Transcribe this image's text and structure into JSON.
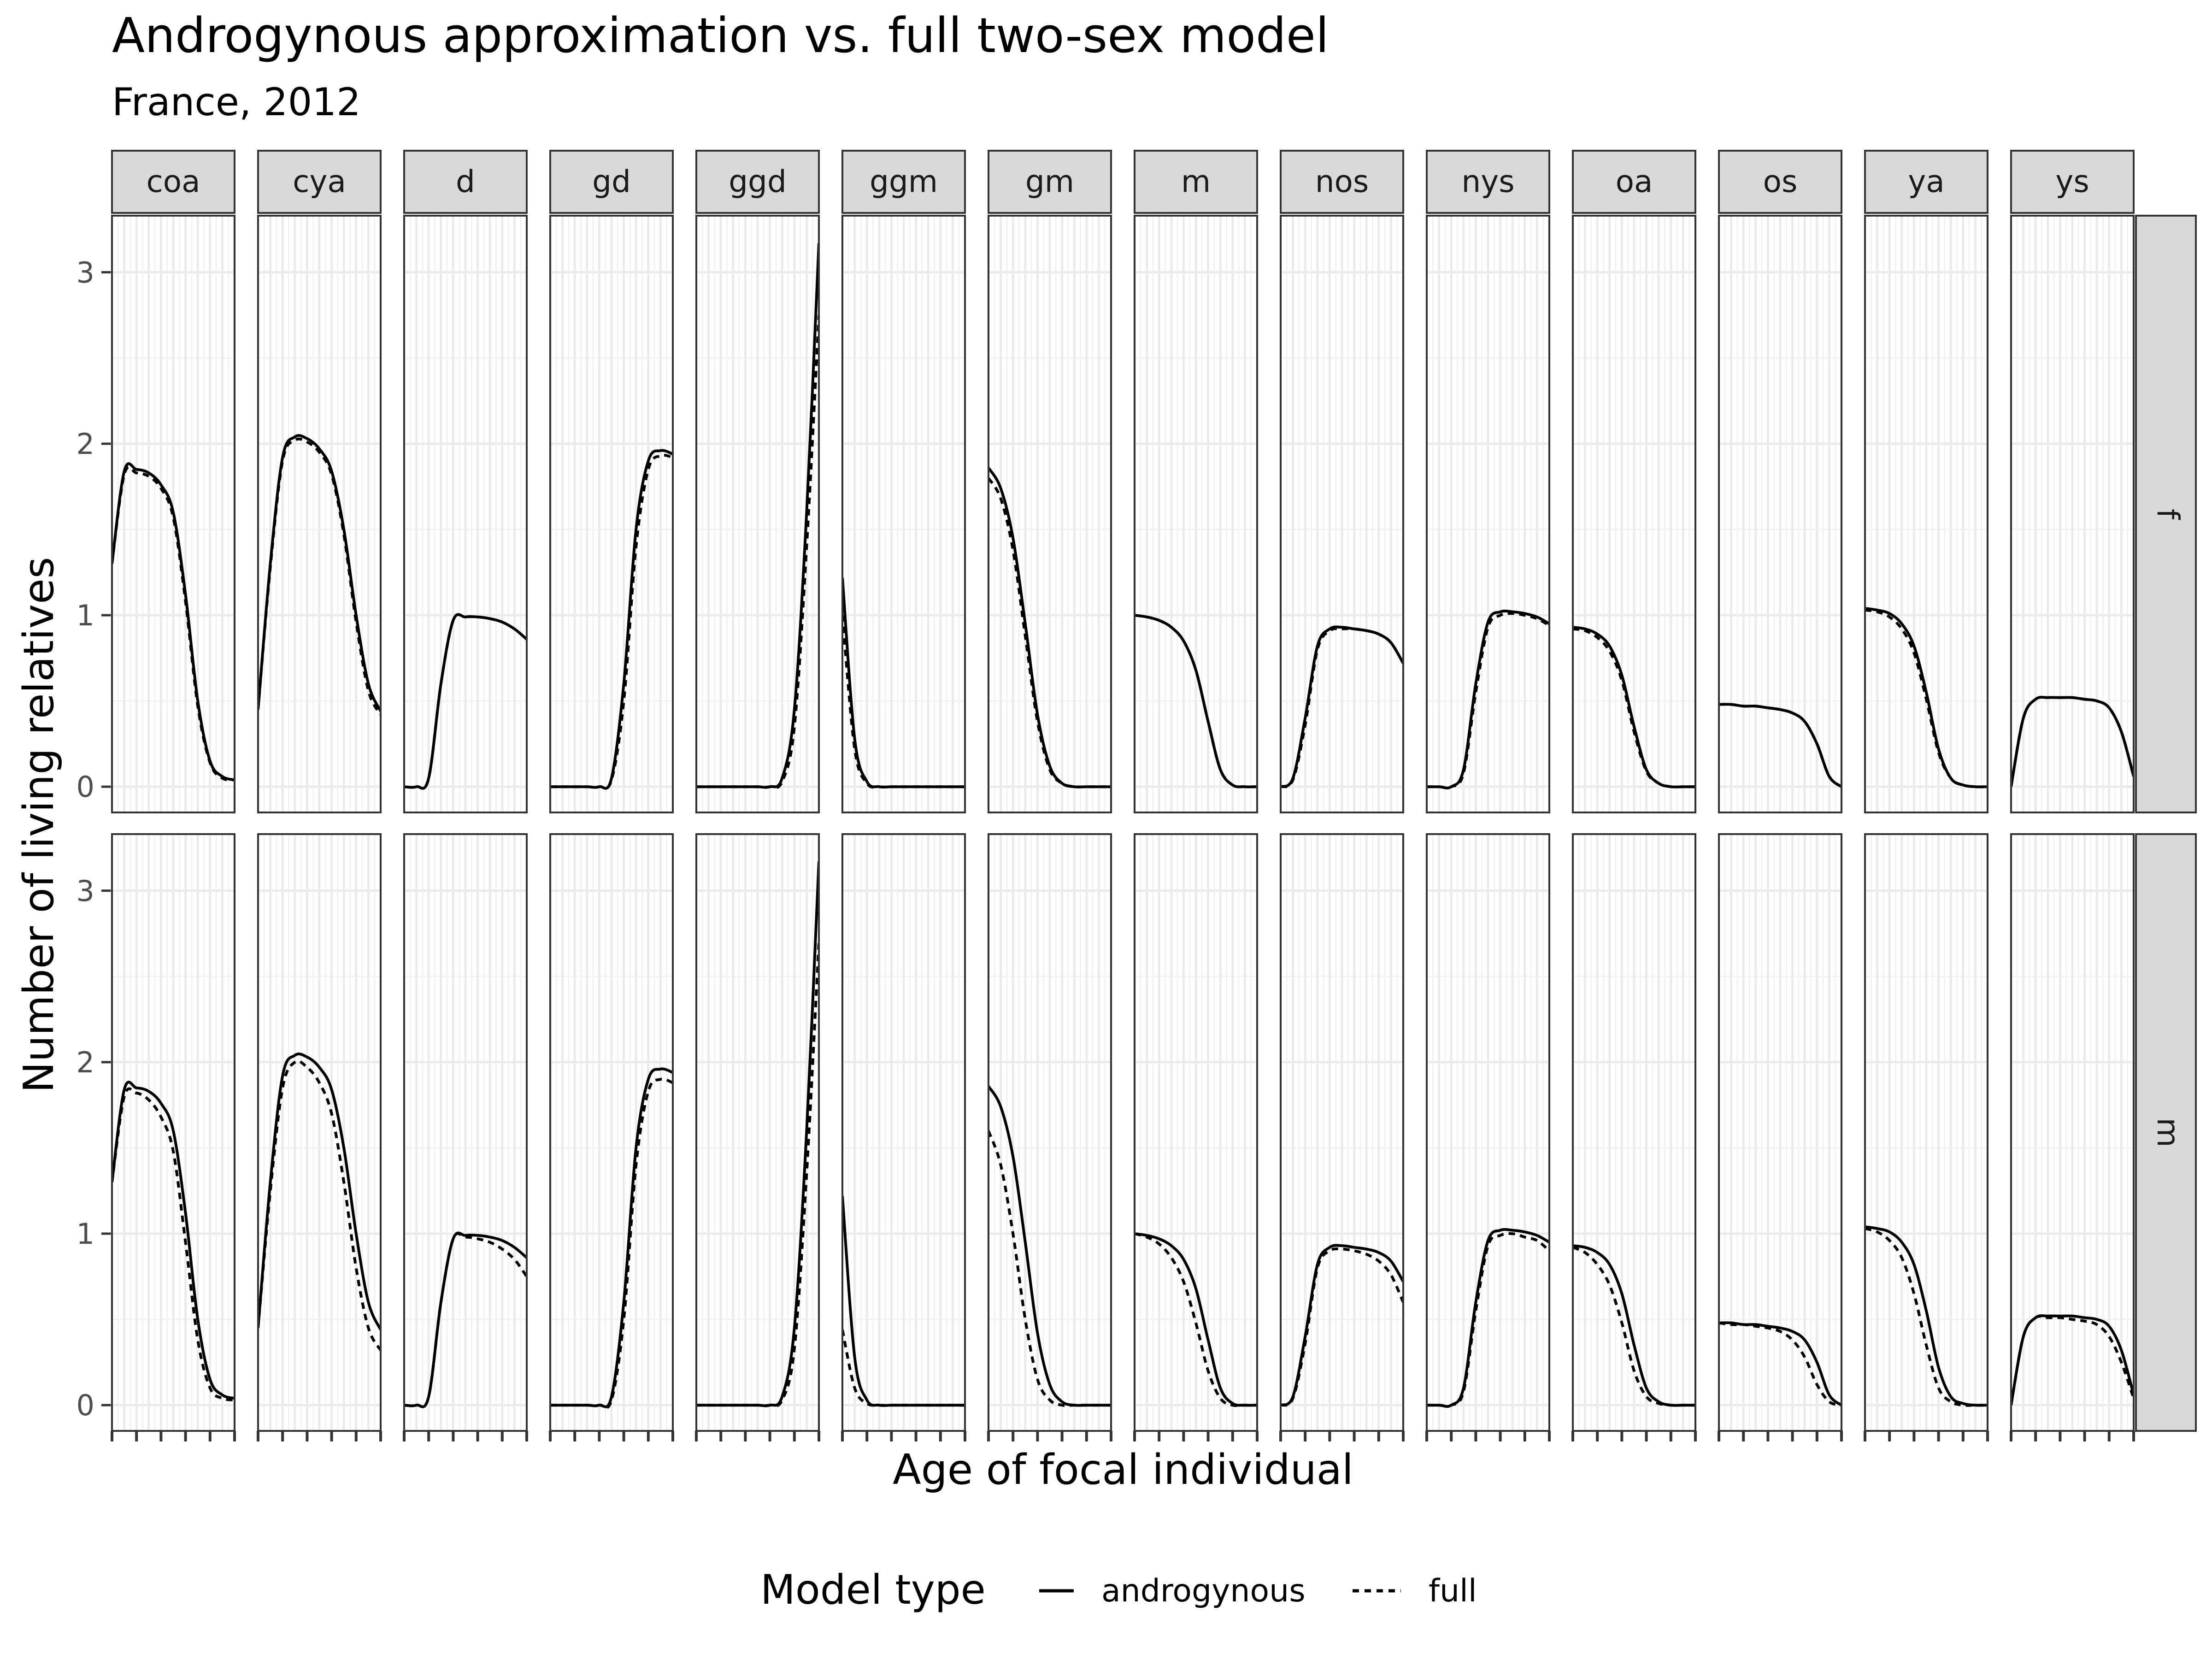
{
  "chart_data": {
    "type": "line",
    "title": "Androgynous approximation vs. full two-sex model",
    "subtitle": "France, 2012",
    "xlabel": "Age of focal individual",
    "ylabel": "Number of living relatives",
    "x": [
      0,
      10,
      20,
      30,
      40,
      50,
      60,
      70,
      80,
      90,
      100
    ],
    "xlim": [
      0,
      100
    ],
    "ylim": [
      -0.15,
      3.33
    ],
    "yticks": [
      0,
      1,
      2,
      3
    ],
    "grid": true,
    "legend": {
      "title": "Model type",
      "position": "bottom",
      "entries": [
        {
          "name": "androgynous",
          "linetype": "solid"
        },
        {
          "name": "full",
          "linetype": "dashed"
        }
      ]
    },
    "facet_cols": [
      "coa",
      "cya",
      "d",
      "gd",
      "ggd",
      "ggm",
      "gm",
      "m",
      "nos",
      "nys",
      "oa",
      "os",
      "ya",
      "ys"
    ],
    "facet_rows": [
      "f",
      "m"
    ],
    "series": {
      "f": {
        "coa": {
          "androgynous": [
            1.3,
            1.84,
            1.85,
            1.83,
            1.76,
            1.6,
            1.12,
            0.5,
            0.15,
            0.06,
            0.04
          ],
          "full": [
            1.3,
            1.82,
            1.83,
            1.81,
            1.74,
            1.57,
            1.08,
            0.47,
            0.14,
            0.05,
            0.04
          ]
        },
        "cya": {
          "androgynous": [
            0.45,
            1.3,
            1.92,
            2.04,
            2.03,
            1.97,
            1.84,
            1.5,
            1.0,
            0.6,
            0.44
          ],
          "full": [
            0.45,
            1.28,
            1.9,
            2.02,
            2.01,
            1.95,
            1.82,
            1.47,
            0.96,
            0.56,
            0.42
          ]
        },
        "d": {
          "androgynous": [
            0.0,
            0.0,
            0.05,
            0.6,
            0.97,
            0.99,
            0.99,
            0.98,
            0.96,
            0.92,
            0.86
          ],
          "full": [
            0.0,
            0.0,
            0.05,
            0.6,
            0.97,
            0.99,
            0.99,
            0.98,
            0.96,
            0.92,
            0.86
          ]
        },
        "gd": {
          "androgynous": [
            0.0,
            0.0,
            0.0,
            0.0,
            0.0,
            0.05,
            0.6,
            1.5,
            1.9,
            1.96,
            1.94
          ],
          "full": [
            0.0,
            0.0,
            0.0,
            0.0,
            0.0,
            0.04,
            0.5,
            1.4,
            1.85,
            1.93,
            1.92
          ]
        },
        "ggd": {
          "androgynous": [
            0.0,
            0.0,
            0.0,
            0.0,
            0.0,
            0.0,
            0.0,
            0.05,
            0.45,
            1.6,
            3.17
          ],
          "full": [
            0.0,
            0.0,
            0.0,
            0.0,
            0.0,
            0.0,
            0.0,
            0.03,
            0.35,
            1.4,
            2.75
          ]
        },
        "ggm": {
          "androgynous": [
            1.22,
            0.28,
            0.03,
            0.0,
            0.0,
            0.0,
            0.0,
            0.0,
            0.0,
            0.0,
            0.0
          ],
          "full": [
            1.0,
            0.22,
            0.02,
            0.0,
            0.0,
            0.0,
            0.0,
            0.0,
            0.0,
            0.0,
            0.0
          ]
        },
        "gm": {
          "androgynous": [
            1.86,
            1.74,
            1.45,
            0.95,
            0.42,
            0.12,
            0.02,
            0.0,
            0.0,
            0.0,
            0.0
          ],
          "full": [
            1.8,
            1.68,
            1.38,
            0.88,
            0.38,
            0.1,
            0.02,
            0.0,
            0.0,
            0.0,
            0.0
          ]
        },
        "m": {
          "androgynous": [
            1.0,
            0.99,
            0.97,
            0.93,
            0.85,
            0.68,
            0.38,
            0.1,
            0.01,
            0.0,
            0.0
          ],
          "full": [
            1.0,
            0.99,
            0.97,
            0.93,
            0.85,
            0.68,
            0.38,
            0.1,
            0.01,
            0.0,
            0.0
          ]
        },
        "nos": {
          "androgynous": [
            0.0,
            0.05,
            0.4,
            0.82,
            0.92,
            0.93,
            0.92,
            0.91,
            0.89,
            0.84,
            0.72
          ],
          "full": [
            0.0,
            0.04,
            0.36,
            0.8,
            0.91,
            0.92,
            0.92,
            0.91,
            0.89,
            0.84,
            0.72
          ]
        },
        "nys": {
          "androgynous": [
            0.0,
            0.0,
            0.0,
            0.1,
            0.6,
            0.96,
            1.02,
            1.02,
            1.01,
            0.99,
            0.95
          ],
          "full": [
            0.0,
            0.0,
            0.0,
            0.08,
            0.55,
            0.93,
            1.0,
            1.01,
            1.0,
            0.98,
            0.94
          ]
        },
        "oa": {
          "androgynous": [
            0.93,
            0.92,
            0.89,
            0.82,
            0.65,
            0.35,
            0.1,
            0.02,
            0.0,
            0.0,
            0.0
          ],
          "full": [
            0.92,
            0.91,
            0.87,
            0.79,
            0.62,
            0.32,
            0.09,
            0.02,
            0.0,
            0.0,
            0.0
          ]
        },
        "os": {
          "androgynous": [
            0.48,
            0.48,
            0.47,
            0.47,
            0.46,
            0.45,
            0.43,
            0.38,
            0.25,
            0.06,
            0.0
          ],
          "full": [
            0.48,
            0.48,
            0.47,
            0.47,
            0.46,
            0.45,
            0.43,
            0.38,
            0.25,
            0.06,
            0.0
          ]
        },
        "ya": {
          "androgynous": [
            1.04,
            1.03,
            1.01,
            0.95,
            0.82,
            0.55,
            0.22,
            0.05,
            0.01,
            0.0,
            0.0
          ],
          "full": [
            1.03,
            1.02,
            0.99,
            0.92,
            0.78,
            0.51,
            0.2,
            0.05,
            0.01,
            0.0,
            0.0
          ]
        },
        "ys": {
          "androgynous": [
            0.0,
            0.4,
            0.51,
            0.52,
            0.52,
            0.52,
            0.51,
            0.5,
            0.46,
            0.32,
            0.06
          ],
          "full": [
            0.0,
            0.4,
            0.51,
            0.52,
            0.52,
            0.52,
            0.51,
            0.5,
            0.46,
            0.32,
            0.06
          ]
        }
      },
      "m": {
        "coa": {
          "androgynous": [
            1.3,
            1.84,
            1.85,
            1.83,
            1.76,
            1.6,
            1.12,
            0.5,
            0.15,
            0.06,
            0.04
          ],
          "full": [
            1.3,
            1.8,
            1.82,
            1.78,
            1.68,
            1.48,
            0.95,
            0.38,
            0.1,
            0.04,
            0.03
          ]
        },
        "cya": {
          "androgynous": [
            0.45,
            1.3,
            1.92,
            2.04,
            2.03,
            1.97,
            1.84,
            1.5,
            1.0,
            0.6,
            0.44
          ],
          "full": [
            0.45,
            1.25,
            1.85,
            2.0,
            1.97,
            1.88,
            1.7,
            1.3,
            0.8,
            0.45,
            0.32
          ]
        },
        "d": {
          "androgynous": [
            0.0,
            0.0,
            0.05,
            0.6,
            0.97,
            0.99,
            0.99,
            0.98,
            0.96,
            0.92,
            0.86
          ],
          "full": [
            0.0,
            0.0,
            0.05,
            0.6,
            0.97,
            0.98,
            0.97,
            0.95,
            0.91,
            0.85,
            0.75
          ]
        },
        "gd": {
          "androgynous": [
            0.0,
            0.0,
            0.0,
            0.0,
            0.0,
            0.05,
            0.6,
            1.5,
            1.9,
            1.96,
            1.94
          ],
          "full": [
            0.0,
            0.0,
            0.0,
            0.0,
            0.0,
            0.03,
            0.5,
            1.4,
            1.83,
            1.9,
            1.88
          ]
        },
        "ggd": {
          "androgynous": [
            0.0,
            0.0,
            0.0,
            0.0,
            0.0,
            0.0,
            0.0,
            0.05,
            0.45,
            1.6,
            3.17
          ],
          "full": [
            0.0,
            0.0,
            0.0,
            0.0,
            0.0,
            0.0,
            0.0,
            0.03,
            0.33,
            1.35,
            2.7
          ]
        },
        "ggm": {
          "androgynous": [
            1.22,
            0.28,
            0.03,
            0.0,
            0.0,
            0.0,
            0.0,
            0.0,
            0.0,
            0.0,
            0.0
          ],
          "full": [
            0.44,
            0.1,
            0.01,
            0.0,
            0.0,
            0.0,
            0.0,
            0.0,
            0.0,
            0.0,
            0.0
          ]
        },
        "gm": {
          "androgynous": [
            1.86,
            1.74,
            1.45,
            0.95,
            0.42,
            0.12,
            0.02,
            0.0,
            0.0,
            0.0,
            0.0
          ],
          "full": [
            1.6,
            1.4,
            1.0,
            0.5,
            0.15,
            0.03,
            0.0,
            0.0,
            0.0,
            0.0,
            0.0
          ]
        },
        "m": {
          "androgynous": [
            1.0,
            0.99,
            0.97,
            0.93,
            0.85,
            0.68,
            0.38,
            0.1,
            0.01,
            0.0,
            0.0
          ],
          "full": [
            1.0,
            0.98,
            0.94,
            0.86,
            0.72,
            0.48,
            0.2,
            0.04,
            0.0,
            0.0,
            0.0
          ]
        },
        "nos": {
          "androgynous": [
            0.0,
            0.05,
            0.4,
            0.82,
            0.92,
            0.93,
            0.92,
            0.91,
            0.89,
            0.84,
            0.72
          ],
          "full": [
            0.0,
            0.04,
            0.36,
            0.8,
            0.9,
            0.91,
            0.9,
            0.88,
            0.84,
            0.76,
            0.6
          ]
        },
        "nys": {
          "androgynous": [
            0.0,
            0.0,
            0.0,
            0.1,
            0.6,
            0.96,
            1.02,
            1.02,
            1.01,
            0.99,
            0.95
          ],
          "full": [
            0.0,
            0.0,
            0.0,
            0.08,
            0.55,
            0.93,
            0.99,
            1.0,
            0.98,
            0.96,
            0.9
          ]
        },
        "oa": {
          "androgynous": [
            0.93,
            0.92,
            0.89,
            0.82,
            0.65,
            0.35,
            0.1,
            0.02,
            0.0,
            0.0,
            0.0
          ],
          "full": [
            0.92,
            0.89,
            0.82,
            0.7,
            0.48,
            0.2,
            0.05,
            0.01,
            0.0,
            0.0,
            0.0
          ]
        },
        "os": {
          "androgynous": [
            0.48,
            0.48,
            0.47,
            0.47,
            0.46,
            0.45,
            0.43,
            0.38,
            0.25,
            0.06,
            0.0
          ],
          "full": [
            0.48,
            0.47,
            0.47,
            0.46,
            0.45,
            0.43,
            0.38,
            0.28,
            0.12,
            0.02,
            0.0
          ]
        },
        "ya": {
          "androgynous": [
            1.04,
            1.03,
            1.01,
            0.95,
            0.82,
            0.55,
            0.22,
            0.05,
            0.01,
            0.0,
            0.0
          ],
          "full": [
            1.03,
            1.01,
            0.96,
            0.86,
            0.65,
            0.35,
            0.1,
            0.02,
            0.0,
            0.0,
            0.0
          ]
        },
        "ys": {
          "androgynous": [
            0.0,
            0.4,
            0.51,
            0.52,
            0.52,
            0.52,
            0.51,
            0.5,
            0.46,
            0.32,
            0.06
          ],
          "full": [
            0.0,
            0.4,
            0.51,
            0.51,
            0.51,
            0.5,
            0.49,
            0.47,
            0.4,
            0.25,
            0.04
          ]
        }
      }
    }
  }
}
